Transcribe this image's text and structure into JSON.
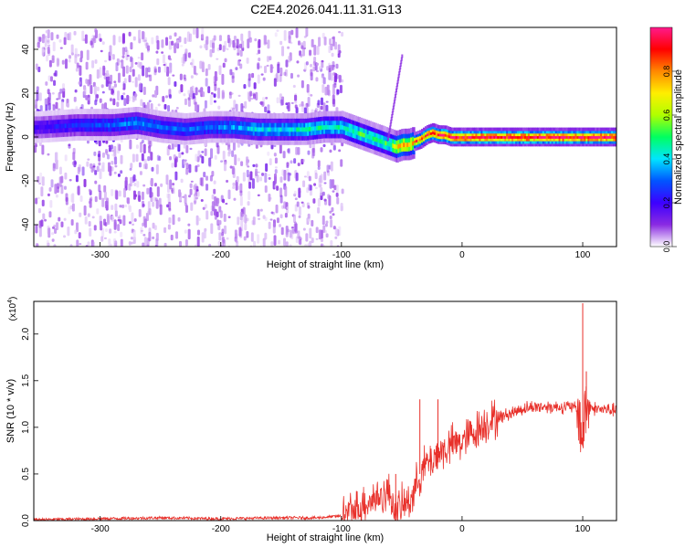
{
  "title": "C2E4.2026.041.11.31.G13",
  "colors": {
    "snr_line": "#e8302a",
    "axis": "#000000",
    "background": "#ffffff"
  },
  "chart_data": [
    {
      "type": "heatmap",
      "xlabel": "Height of straight line (km)",
      "ylabel": "Frequency (Hz)",
      "xlim": [
        -355,
        128
      ],
      "ylim": [
        -50,
        50
      ],
      "x_ticks": [
        -300,
        -200,
        -100,
        0,
        100
      ],
      "x_tick_labels": [
        "-300",
        "-200",
        "-100",
        "0",
        "100"
      ],
      "y_ticks": [
        -40,
        -20,
        0,
        20,
        40
      ],
      "y_tick_labels": [
        "-40",
        "-20",
        "0",
        "20",
        "40"
      ],
      "colorbar": {
        "label": "Normalized spectral amplitude",
        "range": [
          0,
          1
        ],
        "ticks": [
          0.0,
          0.2,
          0.4,
          0.6,
          0.8
        ],
        "tick_labels": [
          "0.0",
          "0.2",
          "0.4",
          "0.6",
          "0.8"
        ],
        "colormap": [
          "#ffffff",
          "#8a2be2",
          "#3c00ff",
          "#0055ff",
          "#00e5ff",
          "#00ff60",
          "#b0ff00",
          "#ffee00",
          "#ff8800",
          "#ff0000",
          "#ff1a8c"
        ]
      },
      "ridge": {
        "x": [
          -350,
          -320,
          -290,
          -270,
          -250,
          -230,
          -210,
          -190,
          -170,
          -150,
          -130,
          -115,
          -100,
          -90,
          -80,
          -70,
          -60,
          -55,
          -50,
          -45,
          -40,
          -35,
          -30,
          -25,
          -20,
          -15,
          -10,
          0,
          20,
          50,
          80,
          100,
          128
        ],
        "y": [
          5,
          6,
          6,
          7,
          5,
          4,
          5,
          5,
          4,
          4,
          4,
          5,
          5,
          3,
          1,
          -1,
          -3,
          -4,
          -3,
          -3,
          -2,
          -1,
          1,
          2,
          1,
          1,
          0,
          0,
          0,
          0,
          0,
          0,
          0
        ],
        "intensity": [
          0.2,
          0.25,
          0.3,
          0.35,
          0.3,
          0.3,
          0.3,
          0.35,
          0.4,
          0.4,
          0.45,
          0.45,
          0.45,
          0.5,
          0.5,
          0.5,
          0.5,
          0.7,
          0.75,
          0.7,
          0.8,
          0.85,
          0.9,
          0.9,
          0.9,
          0.92,
          0.95,
          0.95,
          0.95,
          0.95,
          0.95,
          0.95,
          0.95
        ]
      },
      "grid": false
    },
    {
      "type": "line",
      "xlabel": "Height of straight line (km)",
      "ylabel": "SNR (10 * v/v)",
      "y_multiplier_label": "(x10",
      "y_multiplier_exp": "4",
      "y_multiplier_close": ")",
      "xlim": [
        -355,
        128
      ],
      "ylim": [
        0,
        2.35
      ],
      "x_ticks": [
        -300,
        -200,
        -100,
        0,
        100
      ],
      "x_tick_labels": [
        "-300",
        "-200",
        "-100",
        "0",
        "100"
      ],
      "y_ticks": [
        0.0,
        0.5,
        1.0,
        1.5,
        2.0
      ],
      "y_tick_labels": [
        "0.0",
        "0.5",
        "1.0",
        "1.5",
        "2.0"
      ],
      "series": [
        {
          "x": [
            -355,
            -300,
            -250,
            -200,
            -150,
            -120,
            -100,
            -90,
            -80,
            -70,
            -60,
            -55,
            -50,
            -45,
            -40,
            -35,
            -30,
            -25,
            -20,
            -15,
            -10,
            0,
            10,
            20,
            30,
            40,
            50,
            60,
            70,
            80,
            90,
            95,
            98,
            100,
            102,
            105,
            110,
            128
          ],
          "y": [
            0.01,
            0.02,
            0.03,
            0.02,
            0.03,
            0.03,
            0.05,
            0.1,
            0.2,
            0.25,
            0.3,
            0.1,
            0.15,
            0.2,
            0.3,
            0.5,
            0.6,
            0.65,
            0.72,
            0.75,
            0.8,
            0.85,
            0.95,
            1.05,
            1.1,
            1.15,
            1.2,
            1.22,
            1.22,
            1.22,
            1.22,
            1.2,
            1.1,
            0.8,
            1.2,
            1.22,
            1.2,
            1.18
          ],
          "peaks": [
            {
              "x": -55,
              "y": 0.5
            },
            {
              "x": -35,
              "y": 1.3
            },
            {
              "x": -20,
              "y": 1.3
            },
            {
              "x": 100,
              "y": 2.33
            },
            {
              "x": 103,
              "y": 1.6
            }
          ]
        }
      ],
      "grid": false
    }
  ]
}
